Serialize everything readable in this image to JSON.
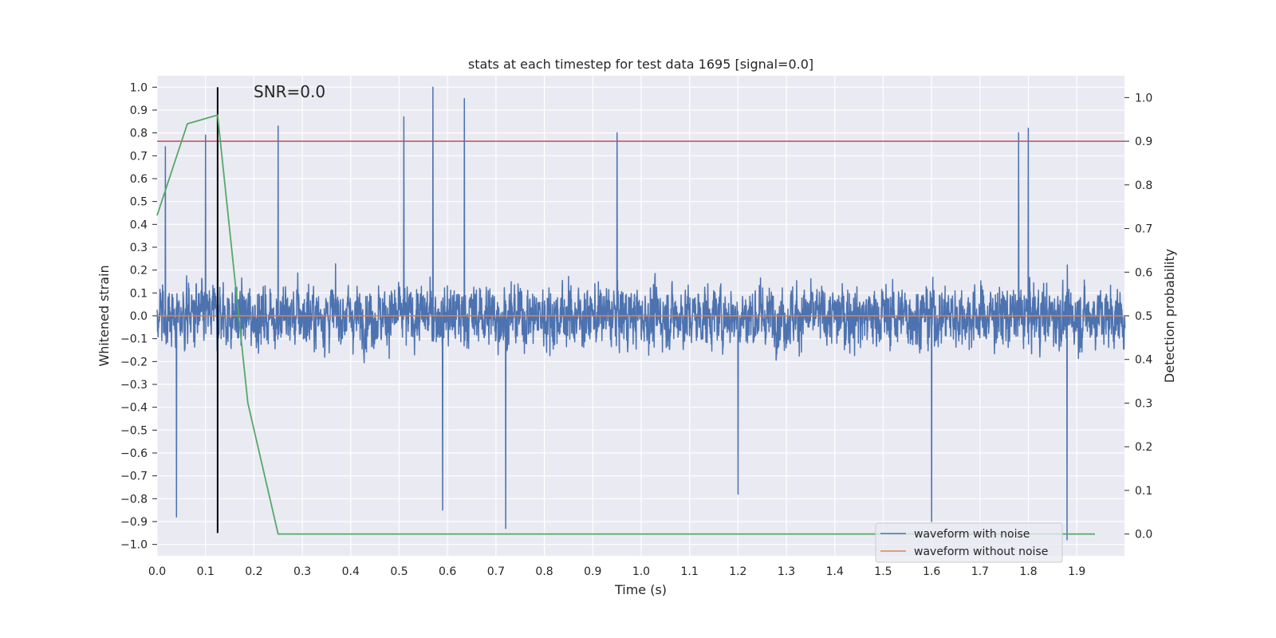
{
  "chart_data": {
    "type": "line",
    "title": "stats at each timestep for test data 1695 [signal=0.0]",
    "xlabel": "Time (s)",
    "ylabel": "Whitened strain",
    "y2label": "Detection probability",
    "xlim": [
      0.0,
      1.9985
    ],
    "ylim": [
      -1.05,
      1.05
    ],
    "y2lim": [
      -0.05,
      1.05
    ],
    "xticks": [
      "0.0",
      "0.1",
      "0.2",
      "0.3",
      "0.4",
      "0.5",
      "0.6",
      "0.7",
      "0.8",
      "0.9",
      "1.0",
      "1.1",
      "1.2",
      "1.3",
      "1.4",
      "1.5",
      "1.6",
      "1.7",
      "1.8",
      "1.9"
    ],
    "yticks": [
      "1.0",
      "0.9",
      "0.8",
      "0.7",
      "0.6",
      "0.5",
      "0.4",
      "0.3",
      "0.2",
      "0.1",
      "0.0",
      "−0.1",
      "−0.2",
      "−0.3",
      "−0.4",
      "−0.5",
      "−0.6",
      "−0.7",
      "−0.8",
      "−0.9",
      "−1.0"
    ],
    "y2ticks": [
      "0.0",
      "0.1",
      "0.2",
      "0.3",
      "0.4",
      "0.5",
      "0.6",
      "0.7",
      "0.8",
      "0.9",
      "1.0"
    ],
    "grid": true,
    "legend_position": "lower-right",
    "annotation": "SNR=0.0",
    "series": [
      {
        "name": "waveform with noise",
        "color": "#4c72b0",
        "axis": "left",
        "sampling_rate_hz": 2048,
        "duration_s": 2.0,
        "amplitude_range": [
          -1.0,
          1.0
        ],
        "peaks": [
          {
            "x": 0.017,
            "y": 0.74
          },
          {
            "x": 0.04,
            "y": -0.88
          },
          {
            "x": 0.1,
            "y": 0.79
          },
          {
            "x": 0.125,
            "y": 0.69
          },
          {
            "x": 0.25,
            "y": 0.83
          },
          {
            "x": 0.51,
            "y": 0.87
          },
          {
            "x": 0.57,
            "y": 1.0
          },
          {
            "x": 0.59,
            "y": -0.85
          },
          {
            "x": 0.635,
            "y": 0.95
          },
          {
            "x": 0.72,
            "y": -0.93
          },
          {
            "x": 0.95,
            "y": 0.8
          },
          {
            "x": 1.2,
            "y": -0.78
          },
          {
            "x": 1.6,
            "y": -0.9
          },
          {
            "x": 1.78,
            "y": 0.8
          },
          {
            "x": 1.8,
            "y": 0.82
          },
          {
            "x": 1.88,
            "y": -0.98
          }
        ]
      },
      {
        "name": "waveform without noise",
        "color": "#dd8452",
        "axis": "left",
        "x": [
          0.0,
          1.9985
        ],
        "y": [
          0.0,
          0.0
        ]
      },
      {
        "name": "",
        "color": "#55a868",
        "axis": "right",
        "x": [
          0.0,
          0.0625,
          0.125,
          0.1875,
          0.25,
          0.3125,
          0.5,
          1.0,
          1.5,
          1.9375
        ],
        "y": [
          0.73,
          0.94,
          0.96,
          0.3,
          0.0,
          0.0,
          0.0,
          0.0,
          0.0,
          0.0
        ]
      }
    ],
    "threshold": {
      "axis": "right",
      "y": 0.9,
      "color": "#c44e52"
    },
    "marker_line": {
      "x": 0.125,
      "y_range": [
        -0.95,
        1.0
      ],
      "color": "#000000"
    }
  }
}
